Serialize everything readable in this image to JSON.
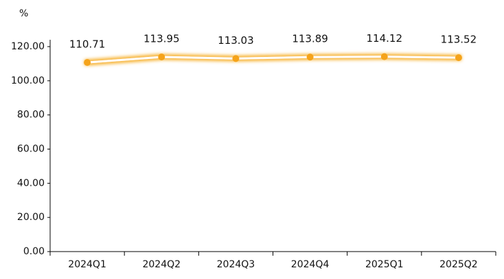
{
  "chart_data": {
    "type": "line",
    "y_unit": "%",
    "categories": [
      "2024Q1",
      "2024Q2",
      "2024Q3",
      "2024Q4",
      "2025Q1",
      "2025Q2"
    ],
    "series": [
      {
        "color": "#f5a31a",
        "values": [
          110.71,
          113.95,
          113.03,
          113.89,
          114.12,
          113.52
        ]
      }
    ],
    "ylim": [
      0,
      120
    ],
    "yticks": [
      {
        "value": 0,
        "label": "0.00"
      },
      {
        "value": 20,
        "label": "20.00"
      },
      {
        "value": 40,
        "label": "40.00"
      },
      {
        "value": 60,
        "label": "60.00"
      },
      {
        "value": 80,
        "label": "80.00"
      },
      {
        "value": 100,
        "label": "100.00"
      },
      {
        "value": 120,
        "label": "120.00"
      }
    ],
    "data_labels": true
  }
}
